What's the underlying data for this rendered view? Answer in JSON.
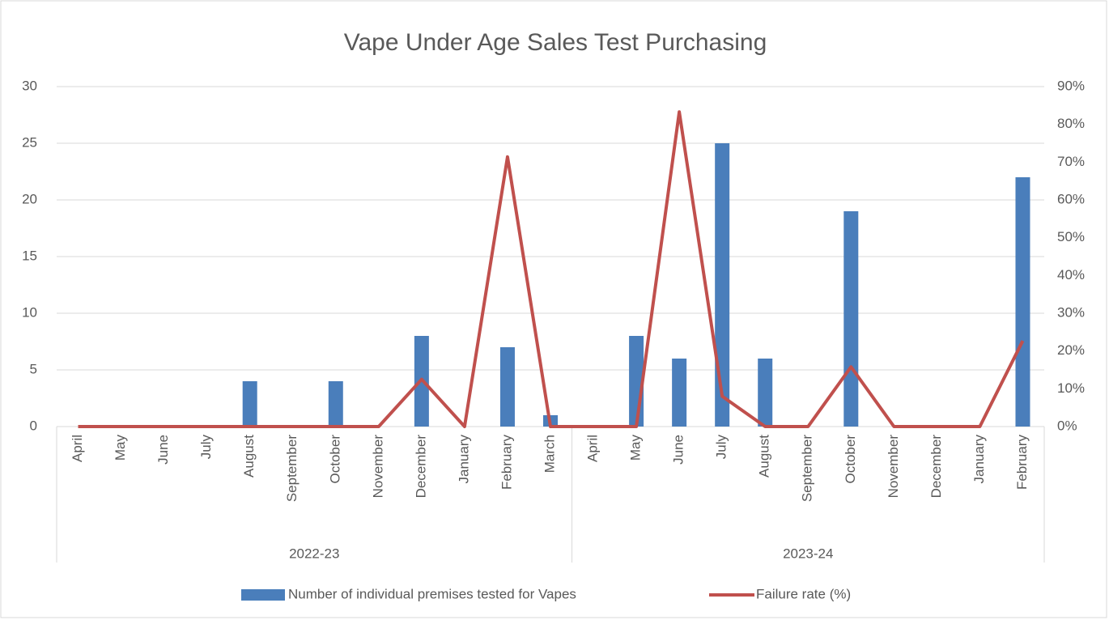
{
  "chart_data": {
    "type": "bar_line",
    "title": "Vape Under Age Sales Test Purchasing",
    "categories": [
      "April",
      "May",
      "June",
      "July",
      "August",
      "September",
      "October",
      "November",
      "December",
      "January",
      "February",
      "March",
      "April",
      "May",
      "June",
      "July",
      "August",
      "September",
      "October",
      "November",
      "December",
      "January",
      "February"
    ],
    "x_groups": [
      "2022-23",
      "2023-24"
    ],
    "series": [
      {
        "name": "Number of individual premises tested for Vapes",
        "type": "bar",
        "color": "#4a7ebb",
        "axis": "y",
        "values": [
          0,
          0,
          0,
          0,
          4,
          0,
          4,
          0,
          8,
          0,
          7,
          1,
          0,
          8,
          6,
          25,
          6,
          0,
          19,
          0,
          0,
          0,
          22
        ]
      },
      {
        "name": "Failure rate (%)",
        "type": "line",
        "color": "#c0504d",
        "axis": "y2",
        "values": [
          0,
          0,
          0,
          0,
          0,
          0,
          0,
          0,
          12.5,
          0,
          71.4,
          0,
          0,
          0,
          83.3,
          8,
          0,
          0,
          15.8,
          0,
          0,
          0,
          22.7
        ]
      }
    ],
    "ylim": [
      0,
      30
    ],
    "yticks": [
      0,
      5,
      10,
      15,
      20,
      25,
      30
    ],
    "y2lim": [
      0,
      90
    ],
    "y2ticks": [
      {
        "value": 0,
        "label": "0%"
      },
      {
        "value": 10,
        "label": "10%"
      },
      {
        "value": 20,
        "label": "20%"
      },
      {
        "value": 30,
        "label": "30%"
      },
      {
        "value": 40,
        "label": "40%"
      },
      {
        "value": 50,
        "label": "50%"
      },
      {
        "value": 60,
        "label": "60%"
      },
      {
        "value": 70,
        "label": "70%"
      },
      {
        "value": 80,
        "label": "80%"
      },
      {
        "value": 90,
        "label": "90%"
      }
    ],
    "grid": true,
    "legend": "bottom"
  }
}
